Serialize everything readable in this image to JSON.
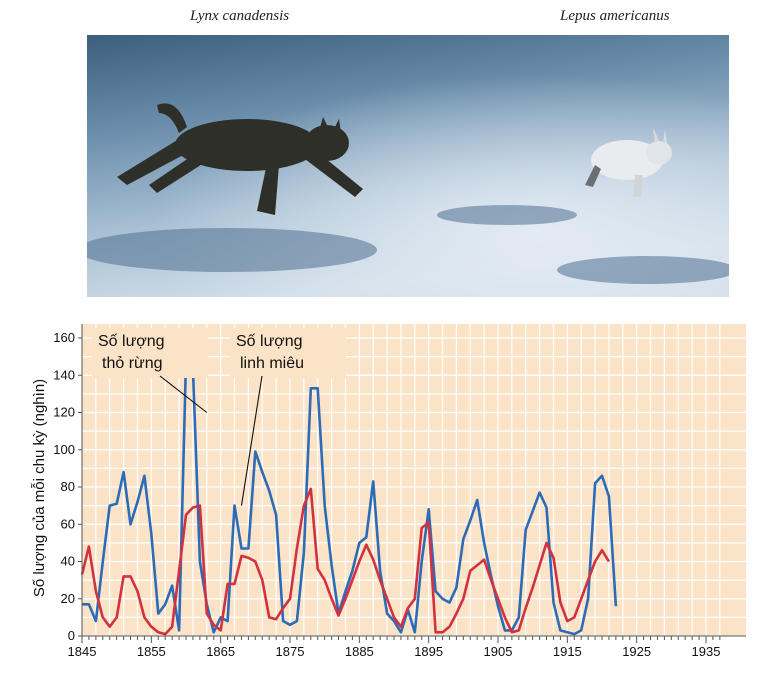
{
  "figure": {
    "caption_lynx": "Lynx canadensis",
    "caption_hare": "Lepus americanus"
  },
  "chart_data": {
    "type": "line",
    "ylabel": "Số lượng của mỗi chu kỳ  (nghìn)",
    "xlim": [
      1845,
      1937
    ],
    "ylim": [
      0,
      170
    ],
    "xticks": [
      1845,
      1855,
      1865,
      1875,
      1885,
      1895,
      1905,
      1915,
      1925,
      1935
    ],
    "yticks": [
      0,
      20,
      40,
      60,
      80,
      100,
      120,
      140,
      160
    ],
    "grid": true,
    "annotations": [
      {
        "line1": "Số lượng",
        "line2": "thỏ rừng",
        "series": 0,
        "target": [
          1863,
          120
        ]
      },
      {
        "line1": "Số lượng",
        "line2": "linh miêu",
        "series": 1,
        "target": [
          1868,
          70
        ]
      }
    ],
    "series": [
      {
        "color": "#2b6bb8",
        "points": [
          [
            1845,
            17
          ],
          [
            1846,
            17
          ],
          [
            1847,
            8
          ],
          [
            1848,
            40
          ],
          [
            1849,
            70
          ],
          [
            1850,
            71
          ],
          [
            1851,
            88
          ],
          [
            1852,
            60
          ],
          [
            1853,
            72
          ],
          [
            1854,
            86
          ],
          [
            1855,
            55
          ],
          [
            1856,
            12
          ],
          [
            1857,
            17
          ],
          [
            1858,
            27
          ],
          [
            1859,
            3
          ],
          [
            1860,
            148
          ],
          [
            1861,
            144
          ],
          [
            1862,
            40
          ],
          [
            1863,
            17
          ],
          [
            1864,
            2
          ],
          [
            1865,
            10
          ],
          [
            1866,
            8
          ],
          [
            1867,
            70
          ],
          [
            1868,
            47
          ],
          [
            1869,
            47
          ],
          [
            1870,
            99
          ],
          [
            1871,
            88
          ],
          [
            1872,
            78
          ],
          [
            1873,
            65
          ],
          [
            1874,
            8
          ],
          [
            1875,
            6
          ],
          [
            1876,
            8
          ],
          [
            1877,
            45
          ],
          [
            1878,
            133
          ],
          [
            1879,
            133
          ],
          [
            1880,
            70
          ],
          [
            1881,
            38
          ],
          [
            1882,
            12
          ],
          [
            1883,
            24
          ],
          [
            1884,
            35
          ],
          [
            1885,
            50
          ],
          [
            1886,
            53
          ],
          [
            1887,
            83
          ],
          [
            1888,
            35
          ],
          [
            1889,
            12
          ],
          [
            1890,
            8
          ],
          [
            1891,
            2
          ],
          [
            1892,
            14
          ],
          [
            1893,
            2
          ],
          [
            1894,
            40
          ],
          [
            1895,
            68
          ],
          [
            1896,
            24
          ],
          [
            1897,
            20
          ],
          [
            1898,
            18
          ],
          [
            1899,
            26
          ],
          [
            1900,
            52
          ],
          [
            1901,
            62
          ],
          [
            1902,
            73
          ],
          [
            1903,
            50
          ],
          [
            1904,
            32
          ],
          [
            1905,
            16
          ],
          [
            1906,
            3
          ],
          [
            1907,
            3
          ],
          [
            1908,
            10
          ],
          [
            1909,
            57
          ],
          [
            1910,
            67
          ],
          [
            1911,
            77
          ],
          [
            1912,
            69
          ],
          [
            1913,
            18
          ],
          [
            1914,
            3
          ],
          [
            1915,
            2
          ],
          [
            1916,
            1
          ],
          [
            1917,
            3
          ],
          [
            1918,
            20
          ],
          [
            1919,
            82
          ],
          [
            1920,
            86
          ],
          [
            1921,
            75
          ],
          [
            1922,
            16
          ]
        ]
      },
      {
        "color": "#d2323f",
        "points": [
          [
            1845,
            33
          ],
          [
            1846,
            48
          ],
          [
            1847,
            24
          ],
          [
            1848,
            10
          ],
          [
            1849,
            5
          ],
          [
            1850,
            10
          ],
          [
            1851,
            32
          ],
          [
            1852,
            32
          ],
          [
            1853,
            24
          ],
          [
            1854,
            10
          ],
          [
            1855,
            5
          ],
          [
            1856,
            2
          ],
          [
            1857,
            1
          ],
          [
            1858,
            5
          ],
          [
            1859,
            35
          ],
          [
            1860,
            65
          ],
          [
            1861,
            69
          ],
          [
            1862,
            70
          ],
          [
            1863,
            12
          ],
          [
            1864,
            6
          ],
          [
            1865,
            3
          ],
          [
            1866,
            28
          ],
          [
            1867,
            28
          ],
          [
            1868,
            43
          ],
          [
            1869,
            42
          ],
          [
            1870,
            40
          ],
          [
            1871,
            30
          ],
          [
            1872,
            10
          ],
          [
            1873,
            9
          ],
          [
            1874,
            15
          ],
          [
            1875,
            20
          ],
          [
            1876,
            47
          ],
          [
            1877,
            70
          ],
          [
            1878,
            79
          ],
          [
            1879,
            36
          ],
          [
            1880,
            30
          ],
          [
            1881,
            20
          ],
          [
            1882,
            11
          ],
          [
            1883,
            20
          ],
          [
            1884,
            30
          ],
          [
            1885,
            40
          ],
          [
            1886,
            49
          ],
          [
            1887,
            41
          ],
          [
            1888,
            30
          ],
          [
            1889,
            20
          ],
          [
            1890,
            10
          ],
          [
            1891,
            5
          ],
          [
            1892,
            15
          ],
          [
            1893,
            20
          ],
          [
            1894,
            58
          ],
          [
            1895,
            61
          ],
          [
            1896,
            2
          ],
          [
            1897,
            2
          ],
          [
            1898,
            5
          ],
          [
            1899,
            12
          ],
          [
            1900,
            20
          ],
          [
            1901,
            35
          ],
          [
            1902,
            38
          ],
          [
            1903,
            41
          ],
          [
            1904,
            30
          ],
          [
            1905,
            20
          ],
          [
            1906,
            10
          ],
          [
            1907,
            2
          ],
          [
            1908,
            3
          ],
          [
            1909,
            15
          ],
          [
            1910,
            26
          ],
          [
            1911,
            38
          ],
          [
            1912,
            50
          ],
          [
            1913,
            42
          ],
          [
            1914,
            18
          ],
          [
            1915,
            8
          ],
          [
            1916,
            10
          ],
          [
            1917,
            20
          ],
          [
            1918,
            30
          ],
          [
            1919,
            40
          ],
          [
            1920,
            46
          ],
          [
            1921,
            40
          ]
        ]
      }
    ]
  }
}
